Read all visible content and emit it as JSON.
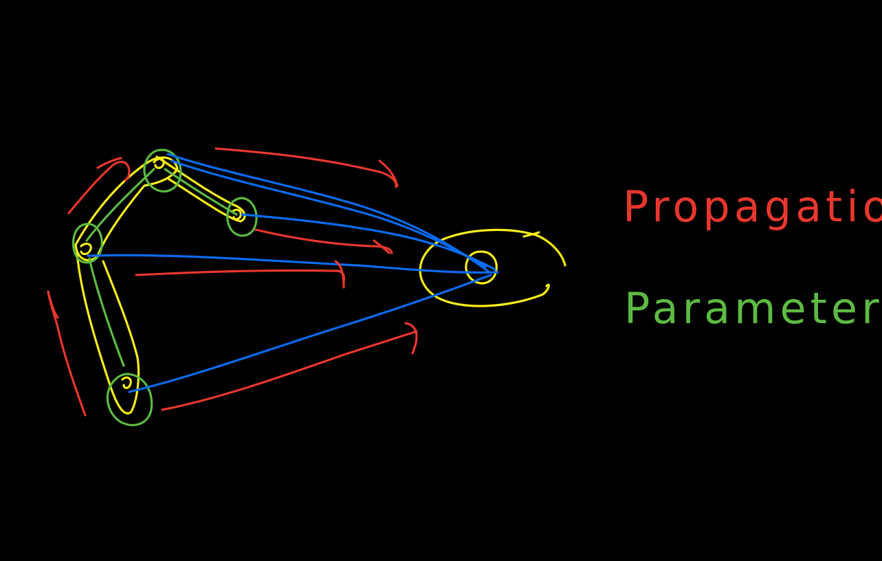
{
  "legend": {
    "propagation": {
      "label": "Propagation",
      "color": "#e8372e"
    },
    "parameters": {
      "label": "Parameters",
      "color": "#5cbb43"
    }
  },
  "colors": {
    "background": "#000000",
    "bones": "#f7ee1b",
    "links": "#0a6cf0",
    "arrows": "#e8372e",
    "joints": "#5cbb43"
  }
}
